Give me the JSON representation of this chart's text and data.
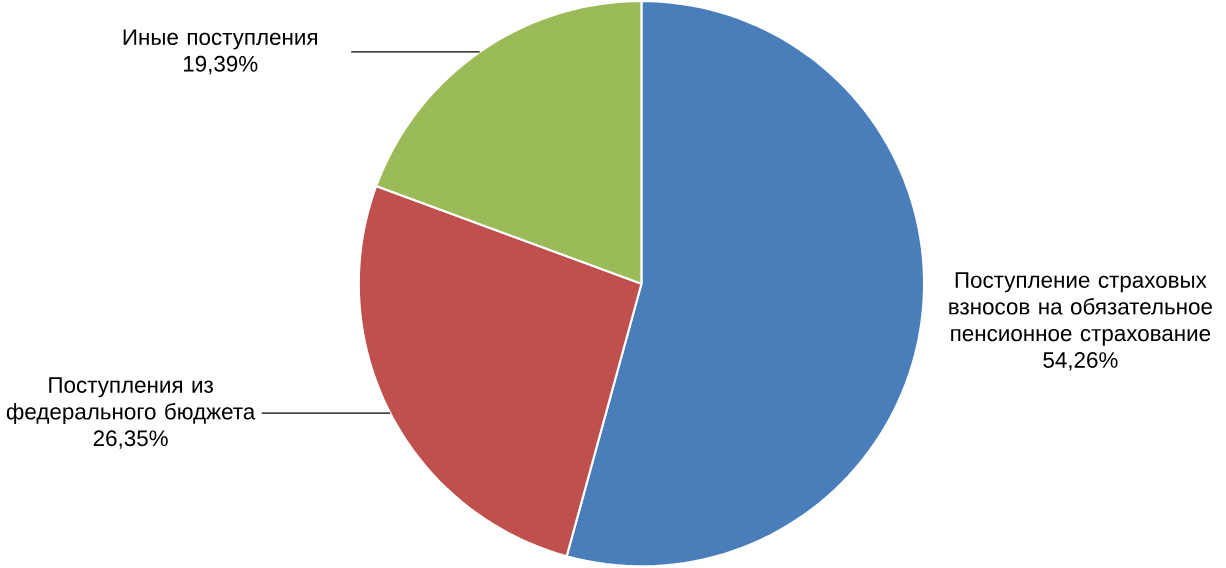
{
  "chart_data": {
    "type": "pie",
    "categories": [
      "Поступление страховых взносов на обязательное пенсионное страхование",
      "Поступления из федерального бюджета",
      "Иные поступления"
    ],
    "values": [
      54.26,
      26.35,
      19.39
    ],
    "value_labels": [
      "54,26%",
      "26,35%",
      "19,39%"
    ],
    "colors": [
      "#4a7ebb",
      "#c0504d",
      "#9bbb59"
    ]
  }
}
